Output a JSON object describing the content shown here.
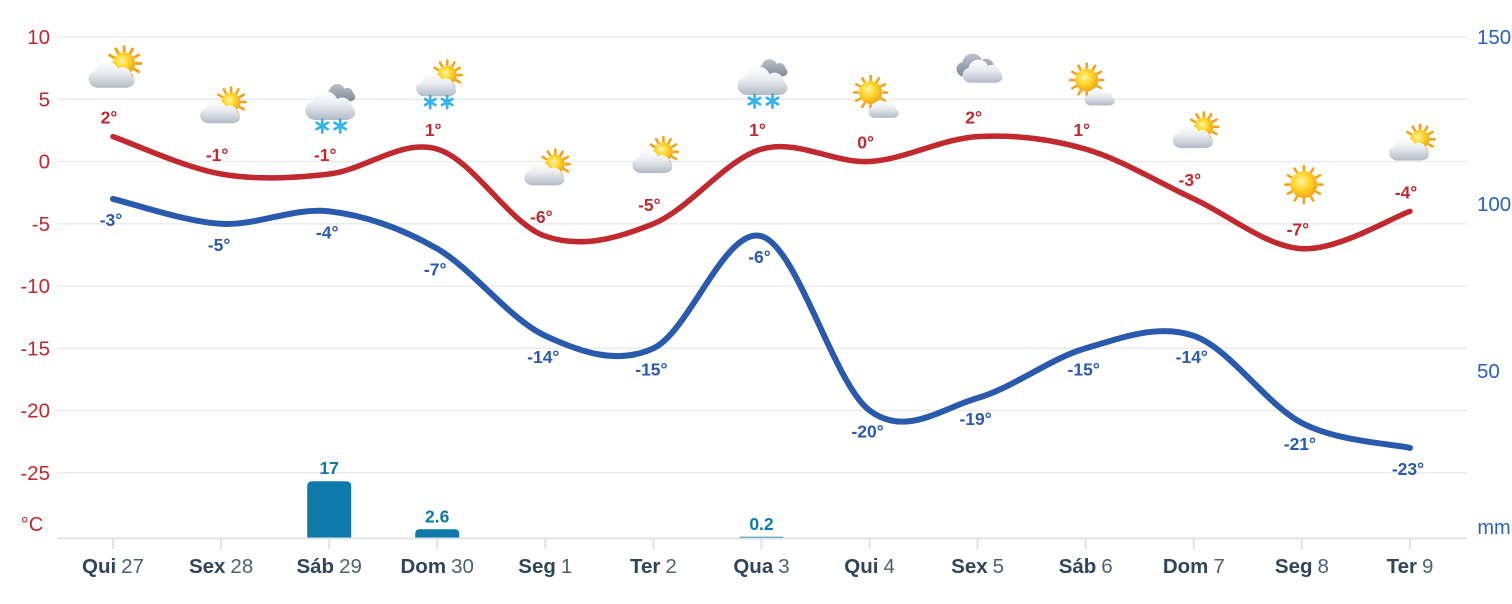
{
  "chart_data": {
    "type": "line+bar",
    "x_axis": {
      "days": [
        {
          "name": "Qui",
          "num": "27"
        },
        {
          "name": "Sex",
          "num": "28"
        },
        {
          "name": "Sáb",
          "num": "29"
        },
        {
          "name": "Dom",
          "num": "30"
        },
        {
          "name": "Seg",
          "num": "1"
        },
        {
          "name": "Ter",
          "num": "2"
        },
        {
          "name": "Qua",
          "num": "3"
        },
        {
          "name": "Qui",
          "num": "4"
        },
        {
          "name": "Sex",
          "num": "5"
        },
        {
          "name": "Sáb",
          "num": "6"
        },
        {
          "name": "Dom",
          "num": "7"
        },
        {
          "name": "Seg",
          "num": "8"
        },
        {
          "name": "Ter",
          "num": "9"
        }
      ],
      "day_color": "#31465a",
      "num_color": "#4f6172"
    },
    "left_axis": {
      "unit": "°C",
      "tick_values": [
        10,
        5,
        0,
        -5,
        -10,
        -15,
        -20,
        -25
      ],
      "color": "#c1292e",
      "range": [
        -29,
        12
      ]
    },
    "right_axis": {
      "unit": "mm",
      "tick_values": [
        150,
        100,
        50
      ],
      "color": "#2a63b8",
      "range": [
        0,
        150
      ]
    },
    "grid": true,
    "series": [
      {
        "name": "max-temperature",
        "kind": "line",
        "color": "#c1292e",
        "values": [
          2,
          -1,
          -1,
          1,
          -6,
          -5,
          1,
          0,
          2,
          1,
          -3,
          -7,
          -4
        ],
        "labels": [
          "2°",
          "-1°",
          "-1°",
          "1°",
          "-6°",
          "-5°",
          "1°",
          "0°",
          "2°",
          "1°",
          "-3°",
          "-7°",
          "-4°"
        ]
      },
      {
        "name": "min-temperature",
        "kind": "line",
        "color": "#2a5aad",
        "values": [
          -3,
          -5,
          -4,
          -7,
          -14,
          -15,
          -6,
          -20,
          -19,
          -15,
          -14,
          -21,
          -23
        ],
        "labels": [
          "-3°",
          "-5°",
          "-4°",
          "-7°",
          "-14°",
          "-15°",
          "-6°",
          "-20°",
          "-19°",
          "-15°",
          "-14°",
          "-21°",
          "-23°"
        ]
      },
      {
        "name": "precipitation",
        "kind": "bar",
        "color": "#0d7aab",
        "values": [
          0,
          0,
          17,
          2.6,
          0,
          0,
          0.2,
          0,
          0,
          0,
          0,
          0,
          0
        ],
        "labels": [
          "",
          "",
          "17",
          "2.6",
          "",
          "",
          "0.2",
          "",
          "",
          "",
          "",
          "",
          ""
        ]
      }
    ],
    "icons": [
      "partly-cloudy",
      "partly-cloudy",
      "snow",
      "sun-snow",
      "partly-cloudy",
      "partly-cloudy",
      "snow",
      "sun-cloud",
      "cloudy",
      "sun-cloud",
      "partly-cloudy",
      "sunny",
      "partly-cloudy"
    ]
  }
}
